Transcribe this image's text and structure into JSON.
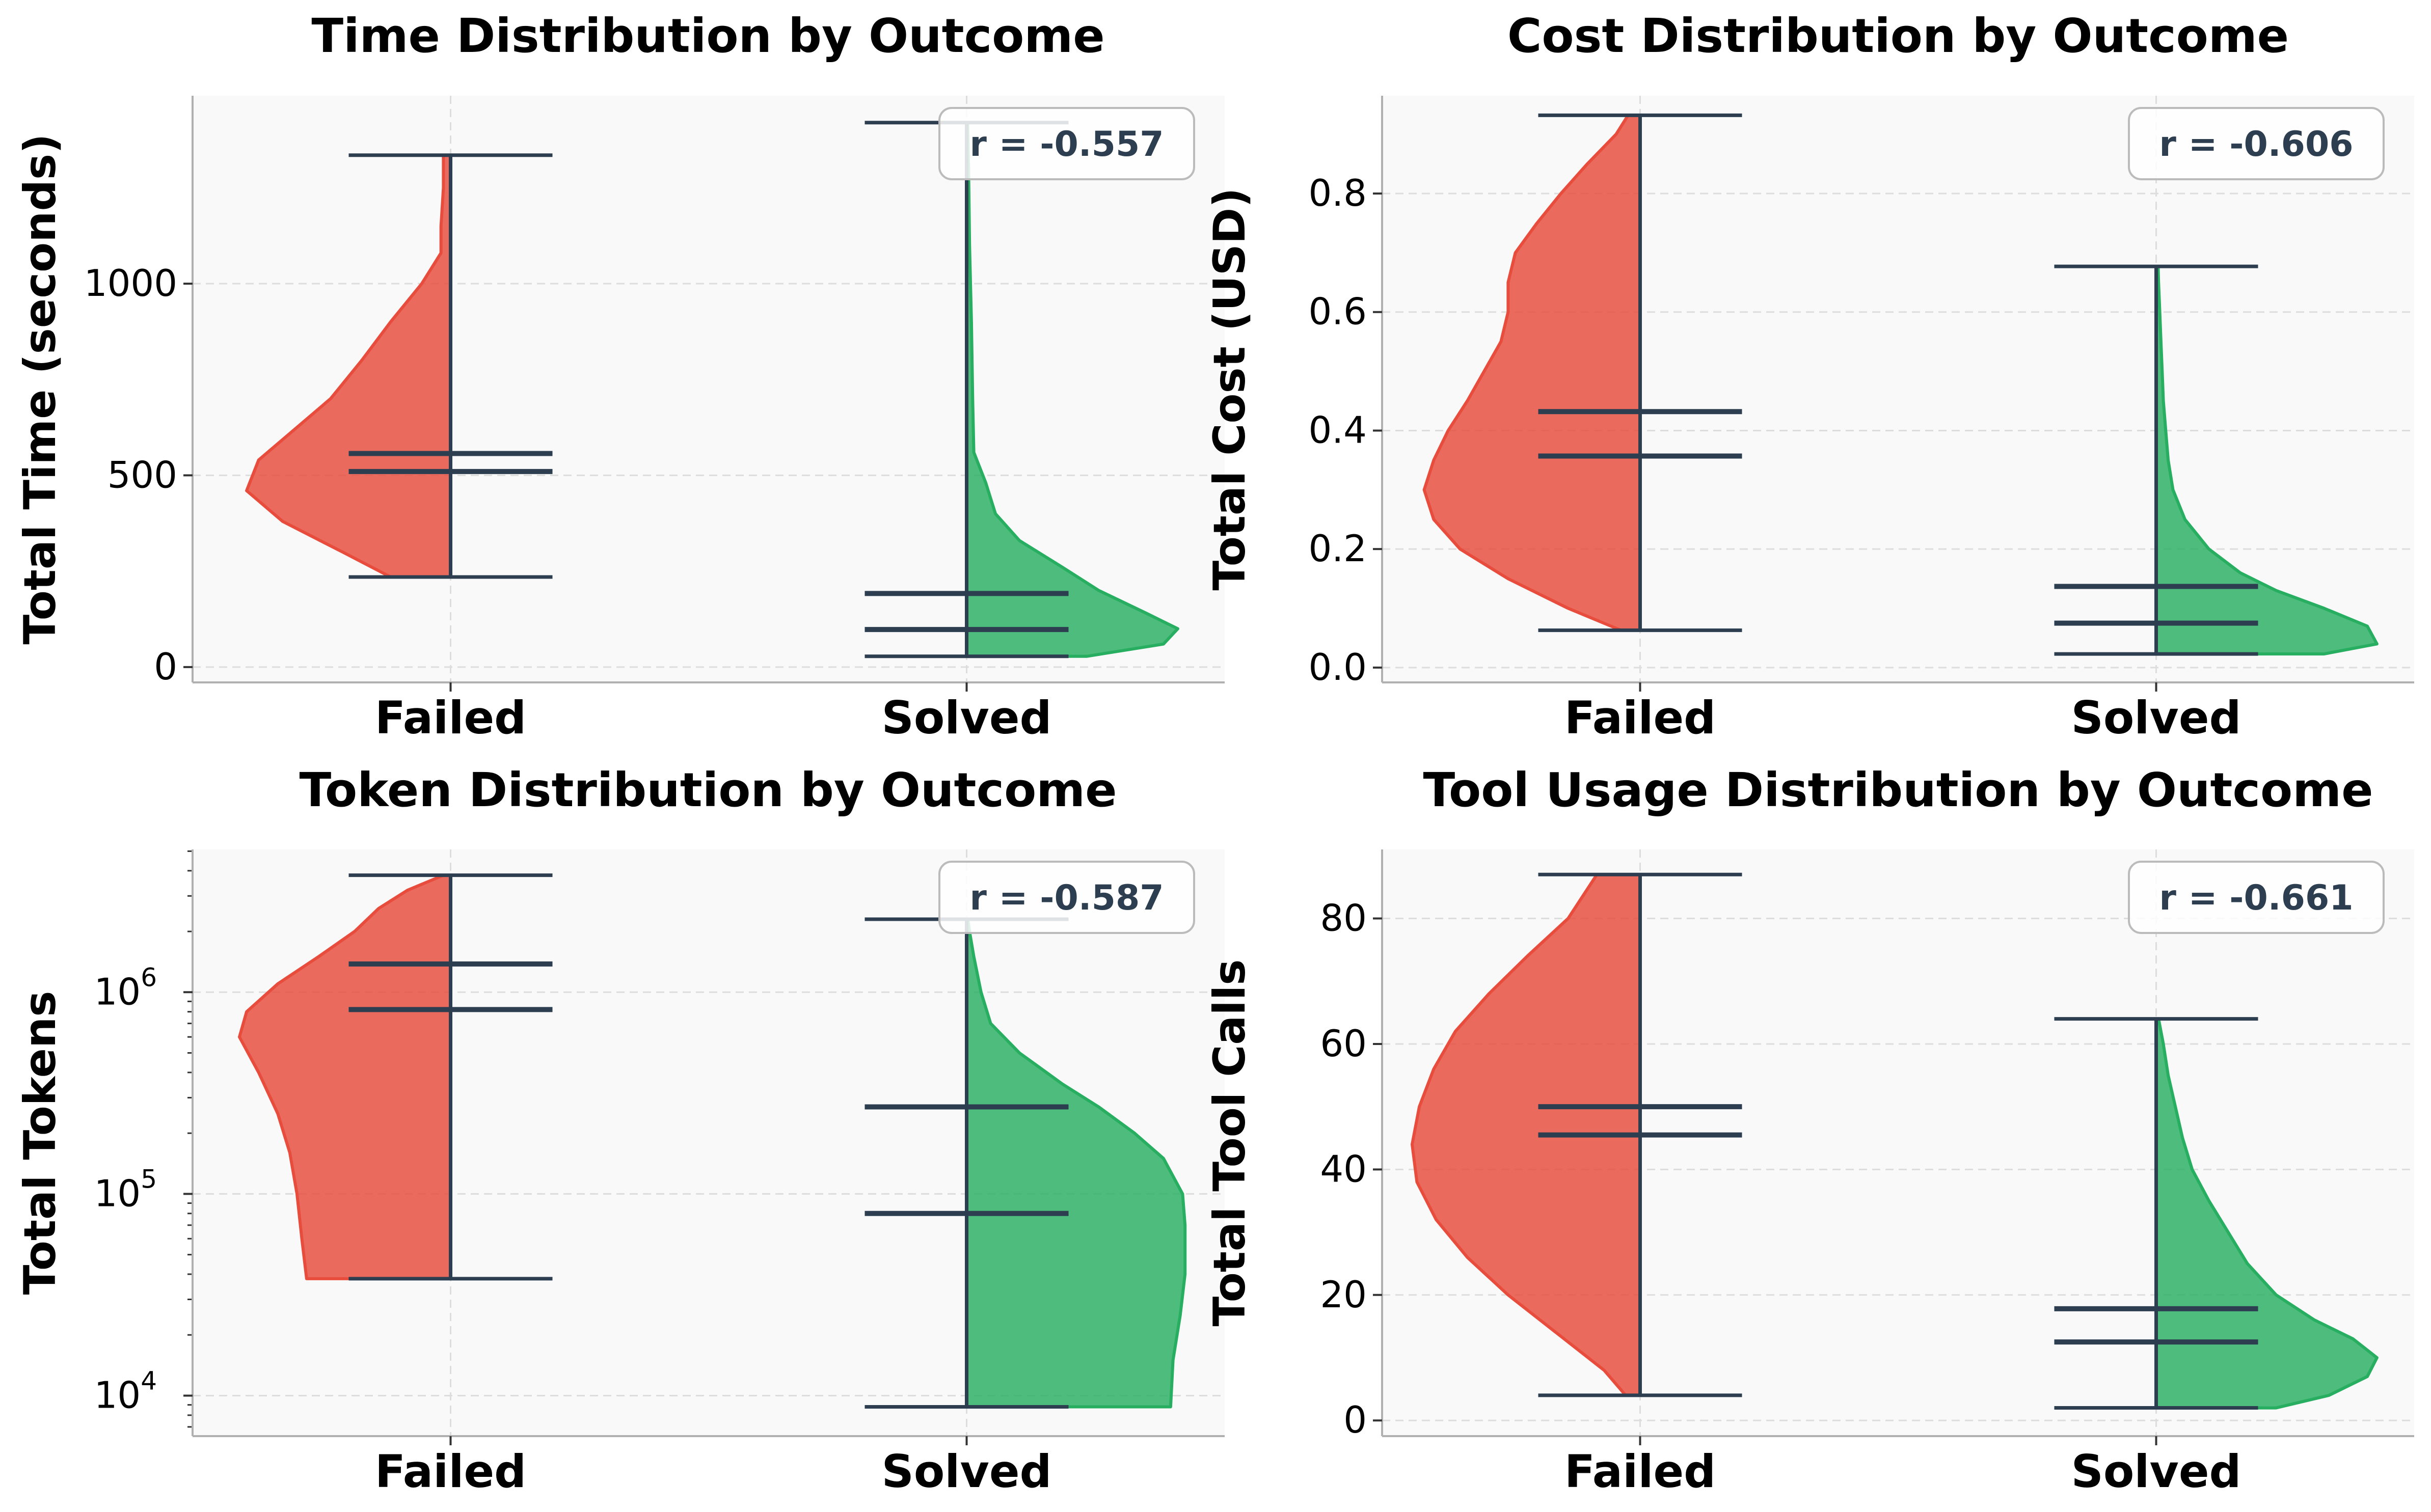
{
  "colors": {
    "failed": "#e74c3c",
    "solved": "#27ae60",
    "ink": "#2c3e50",
    "panel_bg": "#f9f9f9"
  },
  "chart_data": [
    {
      "type": "violin",
      "title": "Time Distribution by Outcome",
      "ylabel": "Total Time (seconds)",
      "categories": [
        "Failed",
        "Solved"
      ],
      "yscale": "linear",
      "ylim": [
        -40,
        1490
      ],
      "yticks": [
        0,
        500,
        1000
      ],
      "ytick_labels": [
        "0",
        "500",
        "1000"
      ],
      "annotation": "r = -0.557",
      "series": [
        {
          "name": "Failed",
          "min": 235,
          "max": 1335,
          "median": 510,
          "mean": 557,
          "density_y": [
            235,
            300,
            380,
            460,
            540,
            620,
            700,
            800,
            900,
            1000,
            1080,
            1150,
            1250,
            1335
          ],
          "density_w": [
            0.25,
            0.45,
            0.7,
            0.85,
            0.8,
            0.65,
            0.5,
            0.37,
            0.25,
            0.12,
            0.04,
            0.04,
            0.03,
            0.03
          ]
        },
        {
          "name": "Solved",
          "min": 28,
          "max": 1420,
          "median": 98,
          "mean": 192,
          "density_y": [
            28,
            60,
            100,
            140,
            200,
            260,
            330,
            400,
            480,
            560,
            700,
            900,
            1100,
            1300,
            1420
          ],
          "density_w": [
            0.5,
            0.82,
            0.88,
            0.75,
            0.55,
            0.4,
            0.22,
            0.12,
            0.08,
            0.03,
            0.025,
            0.02,
            0.012,
            0.008,
            0.004
          ]
        }
      ]
    },
    {
      "type": "violin",
      "title": "Cost Distribution by Outcome",
      "ylabel": "Total Cost (USD)",
      "categories": [
        "Failed",
        "Solved"
      ],
      "yscale": "linear",
      "ylim": [
        -0.025,
        0.965
      ],
      "yticks": [
        0.0,
        0.2,
        0.4,
        0.6,
        0.8
      ],
      "ytick_labels": [
        "0.0",
        "0.2",
        "0.4",
        "0.6",
        "0.8"
      ],
      "annotation": "r = -0.606",
      "series": [
        {
          "name": "Failed",
          "min": 0.063,
          "max": 0.932,
          "median": 0.357,
          "mean": 0.432,
          "density_y": [
            0.063,
            0.1,
            0.15,
            0.2,
            0.25,
            0.3,
            0.35,
            0.4,
            0.45,
            0.5,
            0.55,
            0.6,
            0.65,
            0.7,
            0.75,
            0.8,
            0.85,
            0.9,
            0.932
          ],
          "density_w": [
            0.08,
            0.3,
            0.55,
            0.75,
            0.86,
            0.9,
            0.86,
            0.8,
            0.72,
            0.65,
            0.58,
            0.55,
            0.55,
            0.52,
            0.43,
            0.33,
            0.22,
            0.1,
            0.05
          ]
        },
        {
          "name": "Solved",
          "min": 0.023,
          "max": 0.677,
          "median": 0.075,
          "mean": 0.137,
          "density_y": [
            0.023,
            0.04,
            0.07,
            0.1,
            0.13,
            0.16,
            0.2,
            0.25,
            0.3,
            0.35,
            0.4,
            0.45,
            0.5,
            0.55,
            0.6,
            0.65,
            0.677
          ],
          "density_w": [
            0.7,
            0.92,
            0.88,
            0.7,
            0.5,
            0.35,
            0.22,
            0.12,
            0.07,
            0.05,
            0.04,
            0.03,
            0.025,
            0.02,
            0.015,
            0.01,
            0.008
          ]
        }
      ]
    },
    {
      "type": "violin",
      "title": "Token Distribution by Outcome",
      "ylabel": "Total Tokens",
      "categories": [
        "Failed",
        "Solved"
      ],
      "yscale": "log",
      "ylim": [
        6300,
        5100000
      ],
      "yticks": [
        10000,
        100000,
        1000000
      ],
      "ytick_labels": [
        "10",
        "10",
        "10"
      ],
      "ytick_exponents": [
        "4",
        "5",
        "6"
      ],
      "annotation": "r = -0.587",
      "series": [
        {
          "name": "Failed",
          "min": 38000,
          "max": 3800000,
          "median": 820000,
          "mean": 1380000,
          "density_y": [
            38000,
            60000,
            100000,
            160000,
            250000,
            400000,
            600000,
            800000,
            1100000,
            1500000,
            2000000,
            2600000,
            3200000,
            3800000
          ],
          "density_w": [
            0.6,
            0.62,
            0.64,
            0.67,
            0.72,
            0.8,
            0.88,
            0.85,
            0.72,
            0.55,
            0.4,
            0.3,
            0.18,
            0.03
          ]
        },
        {
          "name": "Solved",
          "min": 8800,
          "max": 2300000,
          "median": 80000,
          "mean": 270000,
          "density_y": [
            8800,
            15000,
            25000,
            40000,
            70000,
            100000,
            150000,
            200000,
            270000,
            350000,
            500000,
            700000,
            1000000,
            1500000,
            2000000,
            2300000
          ],
          "density_w": [
            0.85,
            0.86,
            0.89,
            0.91,
            0.91,
            0.9,
            0.82,
            0.7,
            0.55,
            0.4,
            0.22,
            0.1,
            0.06,
            0.03,
            0.012,
            0.005
          ]
        }
      ]
    },
    {
      "type": "violin",
      "title": "Tool Usage Distribution by Outcome",
      "ylabel": "Total Tool Calls",
      "categories": [
        "Failed",
        "Solved"
      ],
      "yscale": "linear",
      "ylim": [
        -2.5,
        91
      ],
      "yticks": [
        0,
        20,
        40,
        60,
        80
      ],
      "ytick_labels": [
        "0",
        "20",
        "40",
        "60",
        "80"
      ],
      "annotation": "r = -0.661",
      "series": [
        {
          "name": "Failed",
          "min": 4,
          "max": 87,
          "median": 45.5,
          "mean": 50,
          "density_y": [
            4,
            8,
            14,
            20,
            26,
            32,
            38,
            44,
            50,
            56,
            62,
            68,
            74,
            80,
            87
          ],
          "density_w": [
            0.06,
            0.15,
            0.35,
            0.55,
            0.72,
            0.85,
            0.93,
            0.95,
            0.92,
            0.86,
            0.77,
            0.63,
            0.47,
            0.3,
            0.18
          ]
        },
        {
          "name": "Solved",
          "min": 2,
          "max": 64,
          "median": 12.5,
          "mean": 17.8,
          "density_y": [
            2,
            4,
            7,
            10,
            13,
            16,
            20,
            25,
            30,
            35,
            40,
            45,
            50,
            55,
            60,
            64
          ],
          "density_w": [
            0.5,
            0.72,
            0.88,
            0.92,
            0.82,
            0.66,
            0.5,
            0.38,
            0.3,
            0.22,
            0.15,
            0.11,
            0.08,
            0.05,
            0.03,
            0.01
          ]
        }
      ]
    }
  ]
}
